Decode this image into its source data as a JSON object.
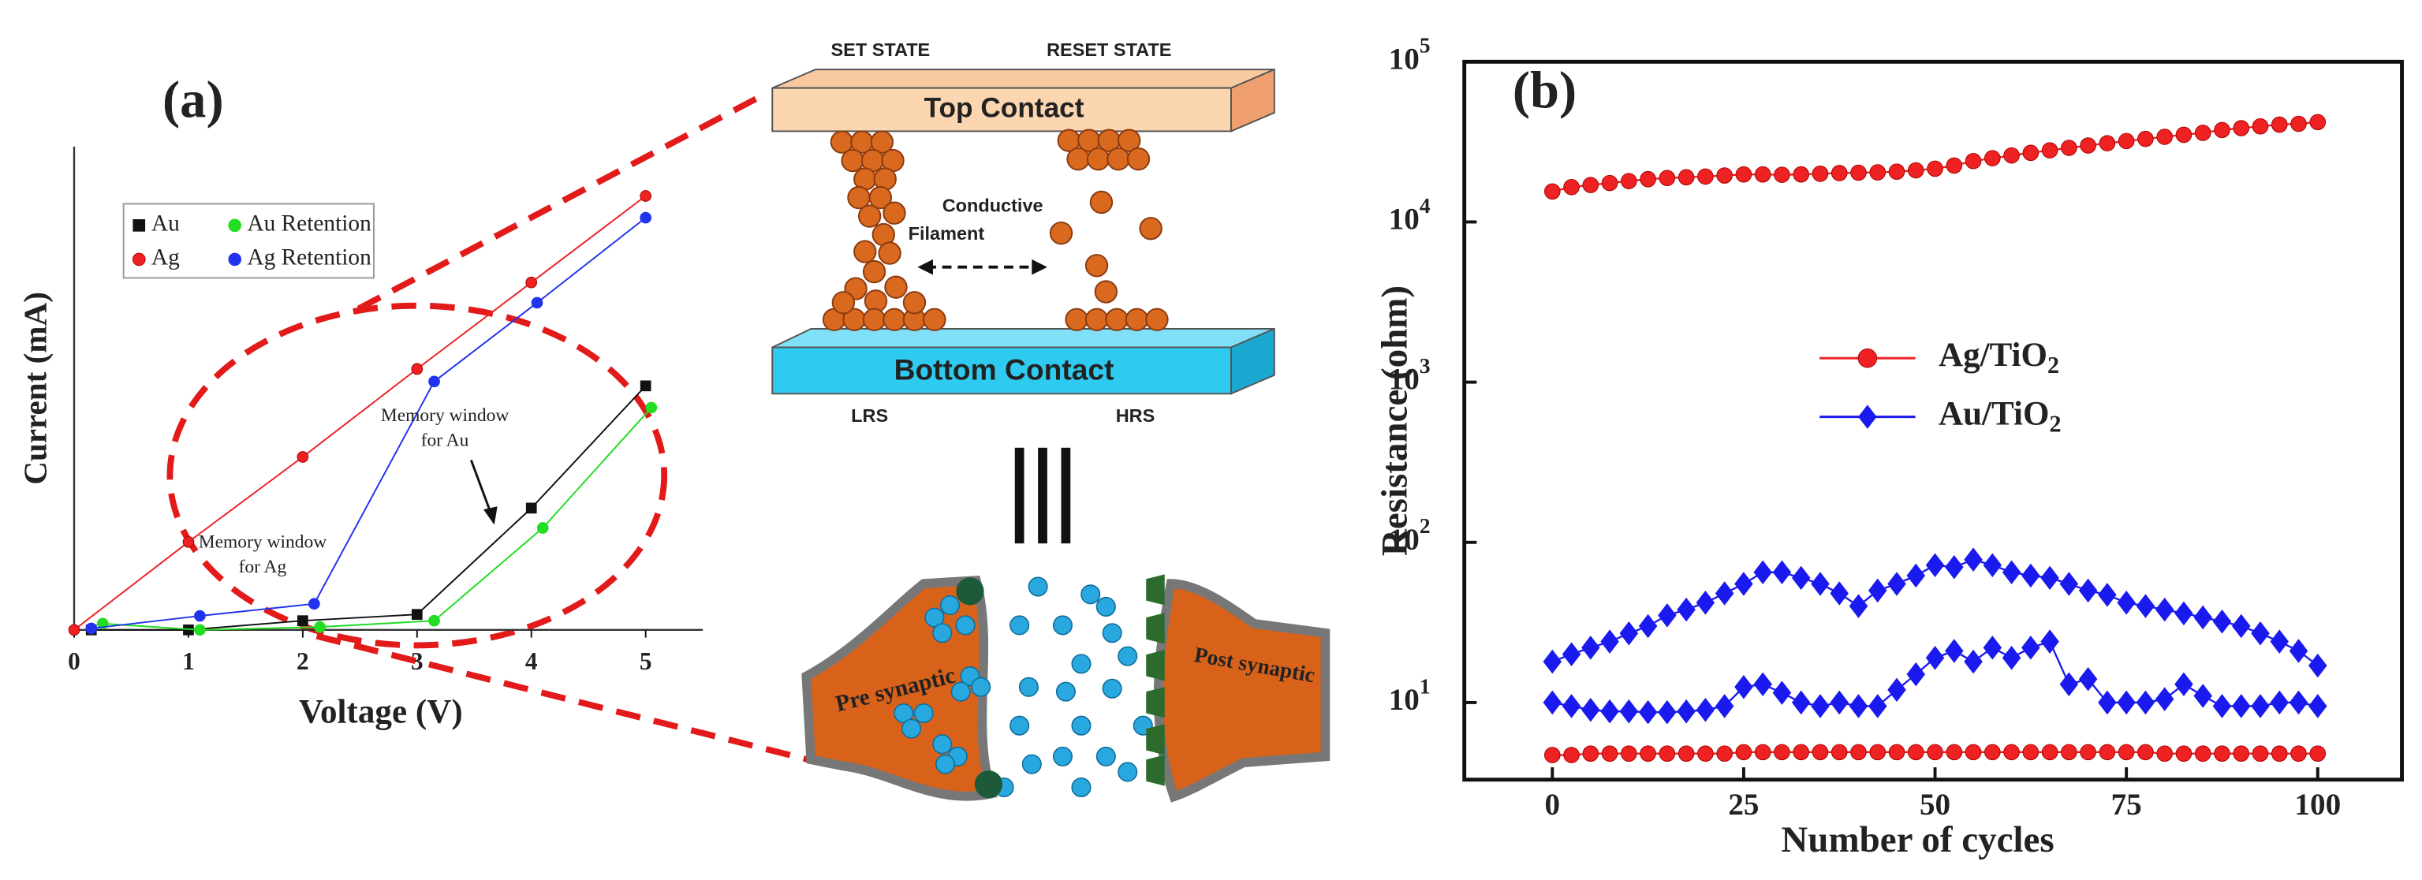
{
  "chart_data": [
    {
      "type": "line",
      "panel": "(a)",
      "x_label": "Voltage (V)",
      "y_label": "Current (mA)",
      "xlim": [
        0,
        5.5
      ],
      "ylim": [
        0,
        10
      ],
      "xticks": [
        0,
        1,
        2,
        3,
        4,
        5
      ],
      "legend": "upper left",
      "annotations": [
        [
          "Memory window",
          "for Ag"
        ],
        [
          "Memory window",
          "for Au"
        ]
      ],
      "series": [
        {
          "name": "Au",
          "color": "#111111",
          "marker": "square",
          "x": [
            0.15,
            1,
            2,
            3,
            4,
            5
          ],
          "values": [
            0,
            0,
            0.19,
            0.32,
            2.52,
            5.05
          ]
        },
        {
          "name": "Au Retention",
          "color": "#22dd22",
          "marker": "circle",
          "x": [
            0.25,
            1.1,
            2.15,
            3.15,
            4.1,
            5.05
          ],
          "values": [
            0.13,
            0,
            0.06,
            0.19,
            2.11,
            4.6
          ]
        },
        {
          "name": "Ag",
          "color": "#ee2222",
          "marker": "circle",
          "x": [
            0,
            1,
            2,
            3,
            4,
            5
          ],
          "values": [
            0,
            1.82,
            3.58,
            5.4,
            7.19,
            8.98
          ]
        },
        {
          "name": "Ag Retention",
          "color": "#2233ee",
          "marker": "circle",
          "x": [
            0.15,
            1.1,
            2.1,
            3.15,
            4.05,
            5
          ],
          "values": [
            0.03,
            0.29,
            0.54,
            5.14,
            6.77,
            8.53
          ]
        }
      ]
    },
    {
      "type": "line",
      "panel": "(b)",
      "x_label": "Number of cycles",
      "y_label": "Resistance (ohm)",
      "log_y": true,
      "xlim": [
        -11.5,
        111
      ],
      "ylim": [
        3.3,
        100000
      ],
      "xticks": [
        0,
        25,
        50,
        75,
        100
      ],
      "yticks": [
        {
          "value": 10,
          "label": "10^1"
        },
        {
          "value": 100,
          "label": "10^2"
        },
        {
          "value": 1000,
          "label": "10^3"
        },
        {
          "value": 10000,
          "label": "10^4"
        },
        {
          "value": 100000,
          "label": "10^5"
        }
      ],
      "legend": "center",
      "x": [
        0,
        2.5,
        5,
        7.5,
        10,
        12.5,
        15,
        17.5,
        20,
        22.5,
        25,
        27.5,
        30,
        32.5,
        35,
        37.5,
        40,
        42.5,
        45,
        47.5,
        50,
        52.5,
        55,
        57.5,
        60,
        62.5,
        65,
        67.5,
        70,
        72.5,
        75,
        77.5,
        80,
        82.5,
        85,
        87.5,
        90,
        92.5,
        95,
        97.5,
        100
      ],
      "series": [
        {
          "name": "Ag/TiO2",
          "color": "#ee2222",
          "marker": "circle",
          "values": [
            15500,
            16500,
            17000,
            17500,
            18000,
            18500,
            18800,
            19000,
            19200,
            19500,
            19800,
            19800,
            19700,
            19800,
            20000,
            20200,
            20300,
            20400,
            20600,
            21000,
            21500,
            22500,
            24000,
            25000,
            26000,
            27000,
            28000,
            29000,
            30000,
            31000,
            32000,
            33000,
            34000,
            35000,
            36000,
            37500,
            38500,
            39500,
            40500,
            41000,
            42000
          ]
        },
        {
          "name": "Ag/TiO2",
          "color": "#ee2222",
          "marker": "circle",
          "values": [
            4.7,
            4.7,
            4.8,
            4.8,
            4.8,
            4.8,
            4.8,
            4.8,
            4.8,
            4.8,
            4.9,
            4.9,
            4.9,
            4.9,
            4.9,
            4.9,
            4.9,
            4.9,
            4.9,
            4.9,
            4.9,
            4.9,
            4.9,
            4.9,
            4.9,
            4.9,
            4.9,
            4.9,
            4.9,
            4.9,
            4.9,
            4.9,
            4.8,
            4.8,
            4.8,
            4.8,
            4.8,
            4.8,
            4.8,
            4.8,
            4.8
          ]
        },
        {
          "name": "Au/TiO2",
          "color": "#1a1aee",
          "marker": "diamond",
          "values": [
            18,
            20,
            22,
            24,
            27,
            30,
            35,
            38,
            42,
            48,
            55,
            65,
            65,
            60,
            55,
            48,
            40,
            50,
            55,
            62,
            72,
            70,
            78,
            72,
            65,
            62,
            60,
            55,
            50,
            47,
            42,
            40,
            38,
            36,
            34,
            32,
            30,
            27,
            24,
            21,
            17
          ]
        },
        {
          "name": "Au/TiO2",
          "color": "#1a1aee",
          "marker": "diamond",
          "values": [
            10,
            9.5,
            9,
            8.8,
            8.8,
            8.7,
            8.7,
            8.8,
            9,
            9.5,
            12.5,
            13,
            11.5,
            10,
            9.5,
            10,
            9.5,
            9.5,
            12,
            15,
            19,
            21,
            18,
            22,
            19,
            22,
            24,
            13,
            14,
            10,
            10,
            10,
            10.5,
            13,
            11,
            9.5,
            9.5,
            9.5,
            10,
            10,
            9.5
          ]
        }
      ]
    }
  ],
  "diagram": {
    "set_state": "SET STATE",
    "reset_state": "RESET STATE",
    "top_contact": "Top Contact",
    "bottom_contact": "Bottom Contact",
    "filament": [
      "Conductive",
      "Filament"
    ],
    "lrs": "LRS",
    "hrs": "HRS",
    "pre": "Pre synaptic",
    "post": "Post synaptic"
  }
}
